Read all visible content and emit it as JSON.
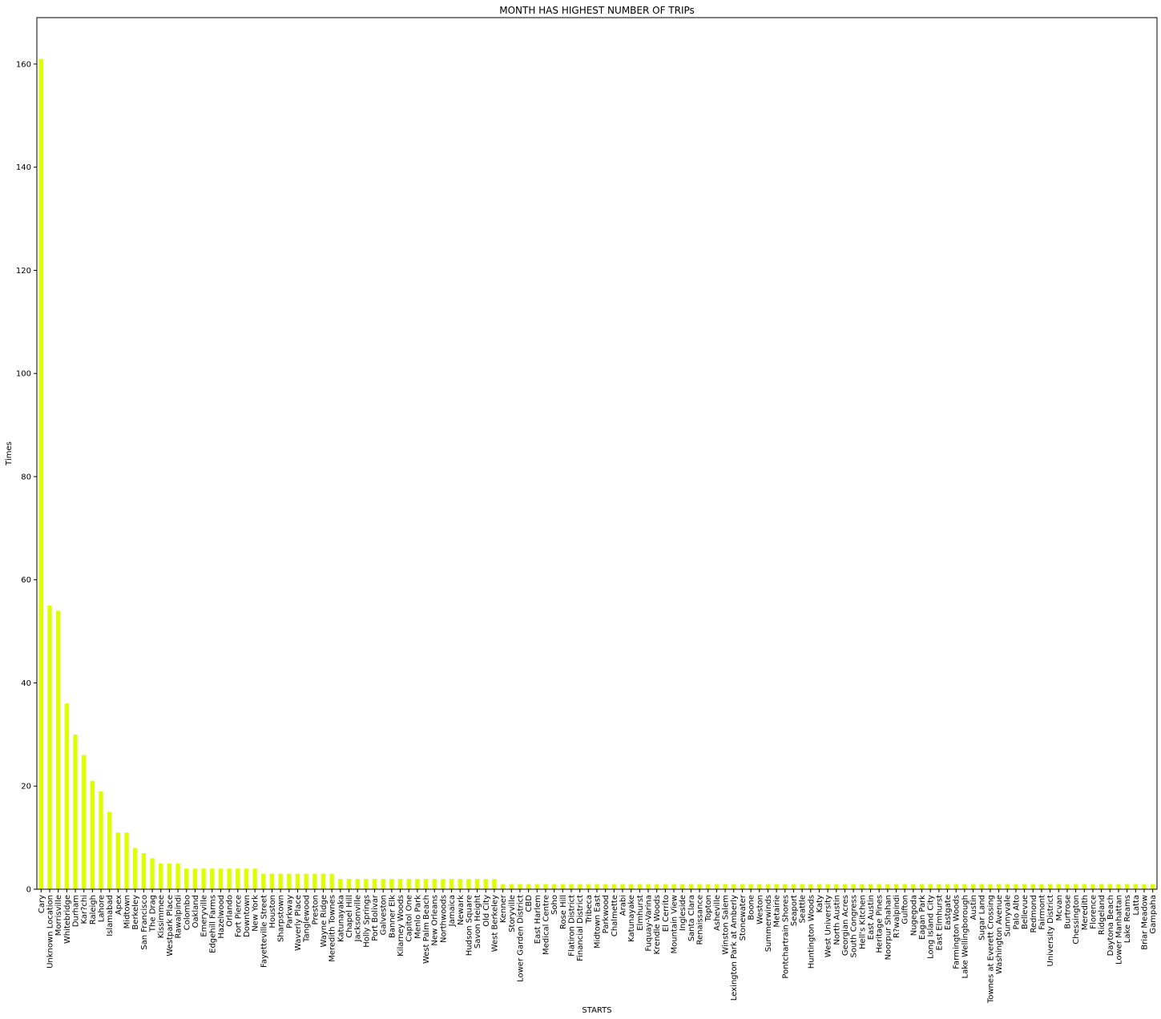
{
  "chart_data": {
    "type": "bar",
    "title": "MONTH HAS HIGHEST NUMBER OF TRIPs",
    "xlabel": "STARTS",
    "ylabel": "Times",
    "ylim": [
      0,
      169
    ],
    "yticks": [
      0,
      20,
      40,
      60,
      80,
      100,
      120,
      140,
      160
    ],
    "bar_color": "#ddff00",
    "grid": false,
    "categories": [
      "Cary",
      "Unknown Location",
      "Morrisville",
      "Whitebridge",
      "Durham",
      "Kar?chi",
      "Raleigh",
      "Lahore",
      "Islamabad",
      "Apex",
      "Midtown",
      "Berkeley",
      "San Francisco",
      "The Drag",
      "Kissimmee",
      "Westpark Place",
      "Rawalpindi",
      "Colombo",
      "Oakland",
      "Emeryville",
      "Edgehill Farms",
      "Hazelwood",
      "Orlando",
      "Fort Pierce",
      "Downtown",
      "New York",
      "Fayetteville Street",
      "Houston",
      "Sharpstown",
      "Parkway",
      "Waverly Place",
      "Tanglewood",
      "Preston",
      "Wayne Ridge",
      "Meredith Townes",
      "Katunayaka",
      "Chapel Hill",
      "Jacksonville",
      "Holly Springs",
      "Port Bolivar",
      "Galveston",
      "Banner Elk",
      "Kilarney Woods",
      "Capitol One",
      "Menlo Park",
      "West Palm Beach",
      "New Orleans",
      "Northwoods",
      "Jamaica",
      "Newark",
      "Hudson Square",
      "Savon Height",
      "Old City",
      "West Berkeley",
      "Kenner",
      "Storyville",
      "Lower Garden District",
      "CBD",
      "East Harlem",
      "Medical Centre",
      "Soho",
      "Rose Hill",
      "Flatiron District",
      "Financial District",
      "Tribeca",
      "Midtown East",
      "Parkwood",
      "Chalmette",
      "Arabi",
      "Katunayake",
      "Elmhurst",
      "Fuquay-Varina",
      "Krendle Woods",
      "El Cerrito",
      "Mountain View",
      "Ingleside",
      "Santa Clara",
      "Renaissance",
      "Topton",
      "Asheville",
      "Winston Salem",
      "Lexington Park at Amberly",
      "Stonewater",
      "Boone",
      "Weston",
      "Summerwinds",
      "Metairie",
      "Pontchartrain Shores",
      "Seaport",
      "Seattle",
      "Huntington Woods",
      "Katy",
      "West University",
      "North Austin",
      "Georgian Acres",
      "South Congress",
      "Hell's Kitchen",
      "East Austin",
      "Heritage Pines",
      "Noorpur Shahan",
      "R?walpindi",
      "Gulfton",
      "Nugegoda",
      "Eagan Park",
      "Long Island City",
      "East Elmhurst",
      "Eastgate",
      "Farmington Woods",
      "Lake Wellingborough",
      "Austin",
      "Sugar Land",
      "Townes at Everett Crossing",
      "Washington Avenue",
      "Sunnyvale",
      "Palo Alto",
      "Bellevue",
      "Redmond",
      "Fairmont",
      "University District",
      "Mcvan",
      "Burtrose",
      "Chessington",
      "Meredith",
      "Florence",
      "Ridgeland",
      "Daytona Beach",
      "Lower Manhattan",
      "Lake Reams",
      "Latta",
      "Briar Meadow",
      "Gampaha"
    ],
    "values": [
      161,
      55,
      54,
      36,
      30,
      26,
      21,
      19,
      15,
      11,
      11,
      8,
      7,
      6,
      5,
      5,
      5,
      4,
      4,
      4,
      4,
      4,
      4,
      4,
      4,
      4,
      3,
      3,
      3,
      3,
      3,
      3,
      3,
      3,
      3,
      2,
      2,
      2,
      2,
      2,
      2,
      2,
      2,
      2,
      2,
      2,
      2,
      2,
      2,
      2,
      2,
      2,
      2,
      2,
      1,
      1,
      1,
      1,
      1,
      1,
      1,
      1,
      1,
      1,
      1,
      1,
      1,
      1,
      1,
      1,
      1,
      1,
      1,
      1,
      1,
      1,
      1,
      1,
      1,
      1,
      1,
      1,
      1,
      1,
      1,
      1,
      1,
      1,
      1,
      1,
      1,
      1,
      1,
      1,
      1,
      1,
      1,
      1,
      1,
      1,
      1,
      1,
      1,
      1,
      1,
      1,
      1,
      1,
      1,
      1,
      1,
      1,
      1,
      1,
      1,
      1,
      1,
      1,
      1,
      1,
      1,
      1,
      1,
      1,
      1,
      1,
      1,
      1,
      1,
      1,
      1
    ]
  }
}
